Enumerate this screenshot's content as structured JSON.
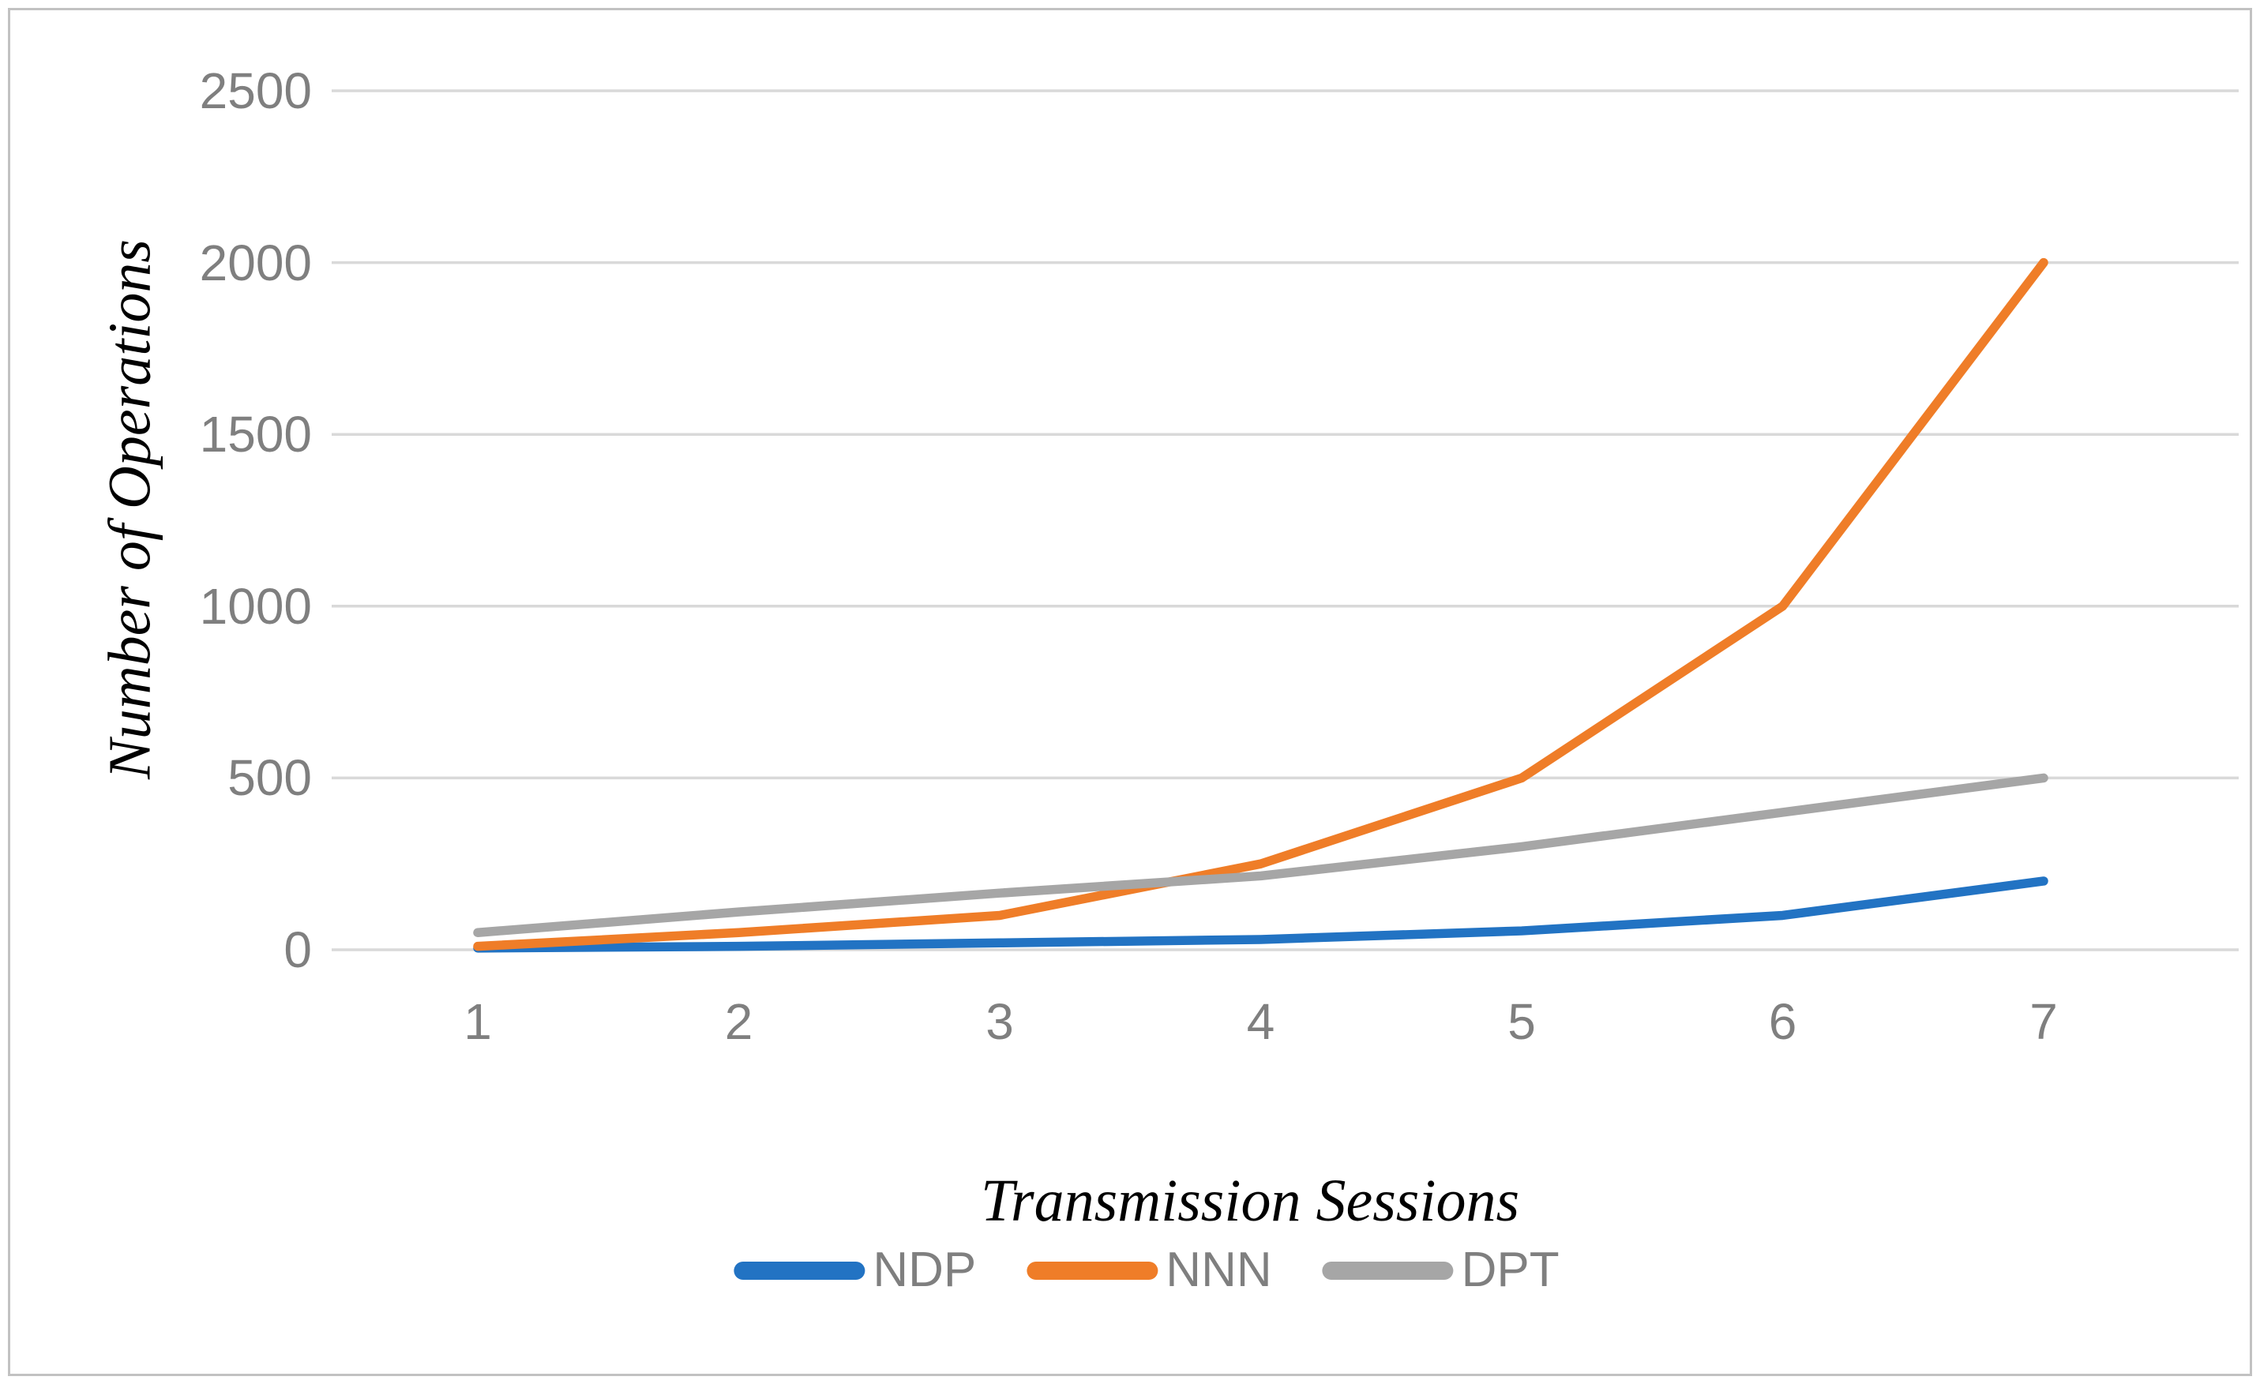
{
  "chart_data": {
    "type": "line",
    "title": "",
    "xlabel": "Transmission Sessions",
    "ylabel": "Number of Operations",
    "categories": [
      1,
      2,
      3,
      4,
      5,
      6,
      7
    ],
    "x_tick_labels": [
      "1",
      "2",
      "3",
      "4",
      "5",
      "6",
      "7"
    ],
    "y_ticks": [
      0,
      500,
      1000,
      1500,
      2000,
      2500
    ],
    "y_tick_labels": [
      "0",
      "500",
      "1000",
      "1500",
      "2000",
      "2500"
    ],
    "ylim": [
      0,
      2500
    ],
    "grid": "horizontal",
    "legend_position": "bottom",
    "series": [
      {
        "name": "NDP",
        "color": "#2273c3",
        "values": [
          5,
          10,
          20,
          30,
          55,
          100,
          200
        ]
      },
      {
        "name": "NNN",
        "color": "#ef7d28",
        "values": [
          10,
          50,
          100,
          250,
          500,
          1000,
          2000
        ]
      },
      {
        "name": "DPT",
        "color": "#a6a6a6",
        "values": [
          50,
          110,
          165,
          215,
          300,
          400,
          500
        ]
      }
    ],
    "colors": {
      "gridline": "#d9d9d9",
      "tick_text": "#7f7f7f",
      "axis_title_text": "#000000",
      "frame_border": "#c2c2c2",
      "background": "#ffffff"
    }
  }
}
